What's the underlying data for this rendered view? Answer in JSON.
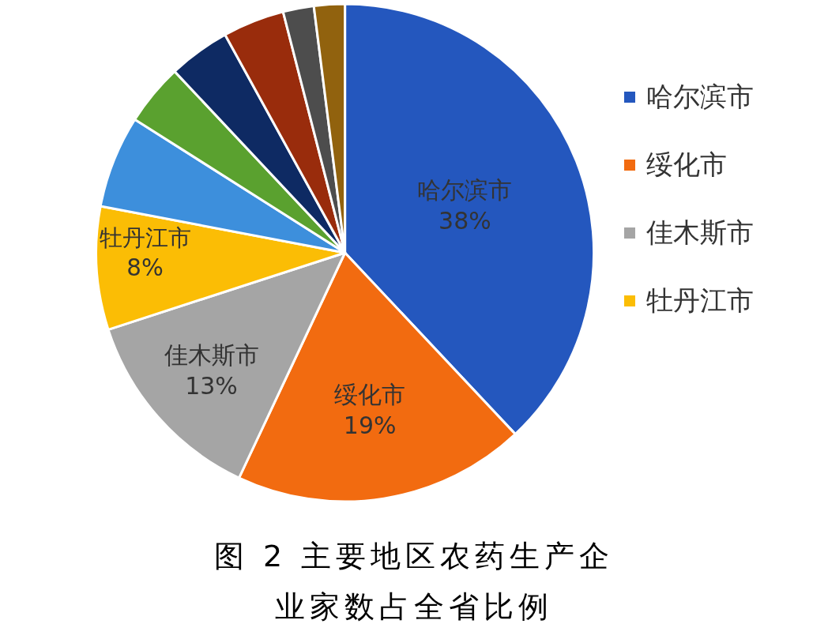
{
  "chart_data": {
    "type": "pie",
    "title": "图 2 主要地区农药生产企业家数占全省比例",
    "categories": [
      "哈尔滨市",
      "绥化市",
      "佳木斯市",
      "牡丹江市",
      null,
      null,
      null,
      null,
      null,
      null
    ],
    "values": [
      38,
      19,
      13,
      8,
      6,
      4,
      4,
      4,
      2,
      2
    ],
    "colors": [
      "#2457be",
      "#f26b10",
      "#a5a5a5",
      "#fbbd05",
      "#3d8fdc",
      "#5aa12f",
      "#0e2a63",
      "#992c0c",
      "#4d4d4d",
      "#91620e"
    ],
    "value_labels": [
      "38%",
      "19%",
      "13%",
      "8%",
      null,
      null,
      null,
      null,
      null,
      null
    ],
    "legend": "right"
  }
}
